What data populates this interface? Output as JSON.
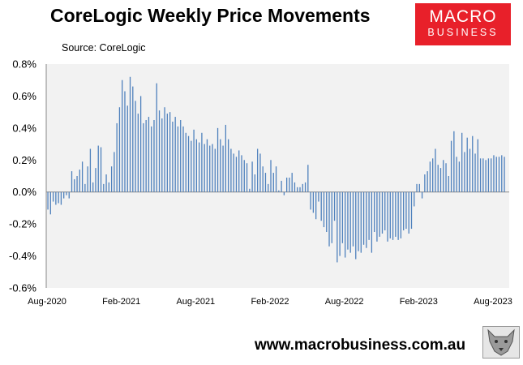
{
  "header": {
    "title": "CoreLogic Weekly Price Movements",
    "source": "Source: CoreLogic"
  },
  "logo": {
    "line1": "MACRO",
    "line2": "BUSINESS"
  },
  "footer": {
    "url": "www.macrobusiness.com.au"
  },
  "colors": {
    "bar": "#4f81bd",
    "plot_bg": "#f2f2f2",
    "logo_bg": "#e8202a"
  },
  "chart_data": {
    "type": "bar",
    "title": "CoreLogic Weekly Price Movements",
    "ylabel": "",
    "xlabel": "",
    "ylim": [
      -0.6,
      0.8
    ],
    "y_ticks": [
      "0.8%",
      "0.6%",
      "0.4%",
      "0.2%",
      "0.0%",
      "-0.2%",
      "-0.4%",
      "-0.6%"
    ],
    "y_tick_values": [
      0.8,
      0.6,
      0.4,
      0.2,
      0.0,
      -0.2,
      -0.4,
      -0.6
    ],
    "x_ticks": [
      "Aug-2020",
      "Feb-2021",
      "Aug-2021",
      "Feb-2022",
      "Aug-2022",
      "Feb-2023",
      "Aug-2023"
    ],
    "grid": false,
    "legend": "none",
    "unit": "%",
    "values": [
      -0.11,
      -0.14,
      -0.06,
      -0.08,
      -0.07,
      -0.08,
      -0.04,
      -0.02,
      -0.04,
      0.13,
      0.08,
      0.1,
      0.14,
      0.19,
      0.05,
      0.16,
      0.27,
      0.06,
      0.15,
      0.29,
      0.28,
      0.05,
      0.11,
      0.06,
      0.16,
      0.25,
      0.43,
      0.53,
      0.7,
      0.63,
      0.54,
      0.72,
      0.66,
      0.57,
      0.49,
      0.6,
      0.43,
      0.45,
      0.47,
      0.41,
      0.45,
      0.68,
      0.51,
      0.46,
      0.53,
      0.49,
      0.5,
      0.44,
      0.47,
      0.41,
      0.45,
      0.41,
      0.37,
      0.35,
      0.32,
      0.39,
      0.33,
      0.31,
      0.37,
      0.3,
      0.33,
      0.29,
      0.3,
      0.27,
      0.4,
      0.33,
      0.29,
      0.42,
      0.33,
      0.27,
      0.24,
      0.22,
      0.26,
      0.23,
      0.2,
      0.18,
      0.02,
      0.19,
      0.11,
      0.27,
      0.24,
      0.16,
      0.12,
      0.05,
      0.2,
      0.12,
      0.16,
      0.01,
      0.07,
      -0.02,
      0.09,
      0.09,
      0.12,
      0.06,
      0.03,
      0.03,
      0.05,
      0.06,
      0.17,
      -0.11,
      -0.13,
      -0.17,
      -0.06,
      -0.18,
      -0.22,
      -0.25,
      -0.34,
      -0.32,
      -0.18,
      -0.44,
      -0.4,
      -0.32,
      -0.41,
      -0.36,
      -0.38,
      -0.34,
      -0.42,
      -0.37,
      -0.38,
      -0.33,
      -0.35,
      -0.3,
      -0.38,
      -0.25,
      -0.31,
      -0.28,
      -0.26,
      -0.24,
      -0.31,
      -0.29,
      -0.3,
      -0.28,
      -0.3,
      -0.29,
      -0.24,
      -0.23,
      -0.26,
      -0.23,
      -0.09,
      0.05,
      0.05,
      -0.04,
      0.11,
      0.13,
      0.19,
      0.21,
      0.27,
      0.17,
      0.15,
      0.2,
      0.18,
      0.1,
      0.32,
      0.38,
      0.22,
      0.19,
      0.37,
      0.25,
      0.34,
      0.27,
      0.35,
      0.24,
      0.33,
      0.21,
      0.21,
      0.2,
      0.21,
      0.21,
      0.23,
      0.22,
      0.22,
      0.23,
      0.22
    ]
  }
}
